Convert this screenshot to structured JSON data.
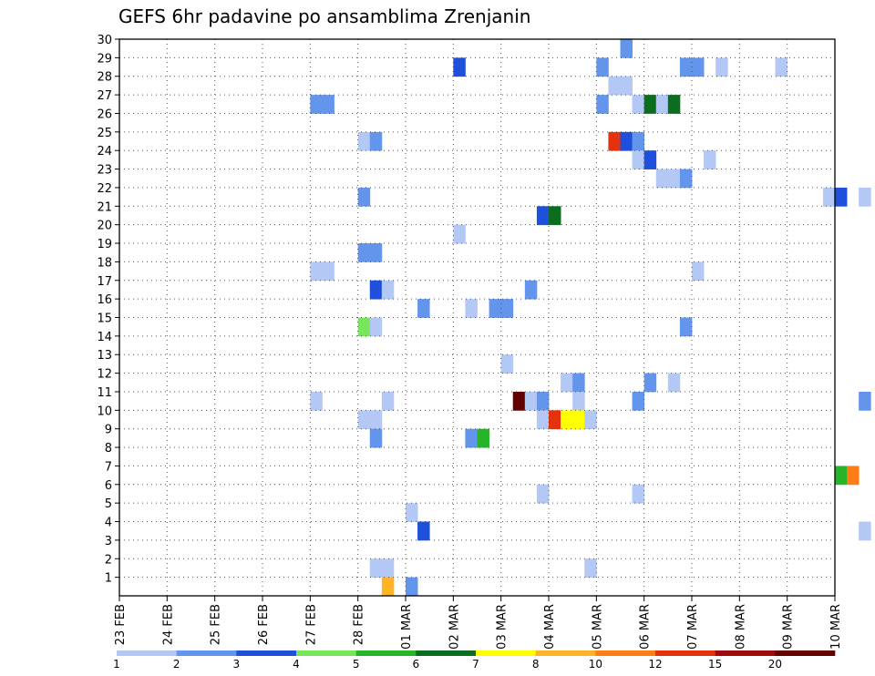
{
  "chart_data": {
    "type": "heatmap",
    "title": "GEFS 6hr padavine po ansamblima Zrenjanin",
    "xlabel": "",
    "ylabel": "",
    "x_tick_labels": [
      "23 FEB",
      "24 FEB",
      "25 FEB",
      "26 FEB",
      "27 FEB",
      "28 FEB",
      "01 MAR",
      "02 MAR",
      "03 MAR",
      "04 MAR",
      "05 MAR",
      "06 MAR",
      "07 MAR",
      "08 MAR",
      "09 MAR",
      "10 MAR"
    ],
    "y_tick_labels": [
      "1",
      "2",
      "3",
      "4",
      "5",
      "6",
      "7",
      "8",
      "9",
      "10",
      "11",
      "12",
      "13",
      "14",
      "15",
      "16",
      "17",
      "18",
      "19",
      "20",
      "21",
      "22",
      "23",
      "24",
      "25",
      "26",
      "27",
      "28",
      "29",
      "30"
    ],
    "x_range_days": [
      0,
      15
    ],
    "y_range": [
      0,
      30
    ],
    "grid": true,
    "legend": {
      "placement": "bottom",
      "labels": [
        "1",
        "2",
        "3",
        "4",
        "5",
        "6",
        "7",
        "8",
        "10",
        "12",
        "15",
        "20"
      ],
      "colors": [
        "#b4c8f5",
        "#6495ed",
        "#1e50dc",
        "#78e65a",
        "#28b428",
        "#0a6e1e",
        "#ffff00",
        "#ffb428",
        "#ff7d14",
        "#e6320a",
        "#a00a0a",
        "#640000"
      ]
    },
    "cells": [
      [
        10.5,
        30,
        1
      ],
      [
        7.0,
        29,
        2
      ],
      [
        10.0,
        29,
        1
      ],
      [
        11.75,
        29,
        1
      ],
      [
        12.0,
        29,
        1
      ],
      [
        12.5,
        29,
        0
      ],
      [
        13.75,
        29,
        0
      ],
      [
        10.25,
        28,
        0
      ],
      [
        10.5,
        28,
        0
      ],
      [
        4.0,
        27,
        1
      ],
      [
        4.25,
        27,
        1
      ],
      [
        10.0,
        27,
        1
      ],
      [
        10.75,
        27,
        0
      ],
      [
        11.0,
        27,
        5
      ],
      [
        11.25,
        27,
        0
      ],
      [
        11.5,
        27,
        5
      ],
      [
        5.0,
        25,
        0
      ],
      [
        5.25,
        25,
        1
      ],
      [
        10.25,
        25,
        9
      ],
      [
        10.5,
        25,
        2
      ],
      [
        10.75,
        25,
        1
      ],
      [
        10.75,
        24,
        0
      ],
      [
        11.0,
        24,
        2
      ],
      [
        12.25,
        24,
        0
      ],
      [
        11.25,
        23,
        0
      ],
      [
        11.5,
        23,
        0
      ],
      [
        11.75,
        23,
        1
      ],
      [
        5.0,
        22,
        1
      ],
      [
        14.75,
        22,
        0
      ],
      [
        15.0,
        22,
        2
      ],
      [
        15.5,
        22,
        0
      ],
      [
        8.75,
        21,
        2
      ],
      [
        9.0,
        21,
        5
      ],
      [
        7.0,
        20,
        0
      ],
      [
        5.0,
        19,
        1
      ],
      [
        5.25,
        19,
        1
      ],
      [
        4.0,
        18,
        0
      ],
      [
        4.25,
        18,
        0
      ],
      [
        12.0,
        18,
        0
      ],
      [
        5.25,
        17,
        2
      ],
      [
        5.5,
        17,
        0
      ],
      [
        8.5,
        17,
        1
      ],
      [
        6.25,
        16,
        1
      ],
      [
        7.25,
        16,
        0
      ],
      [
        7.75,
        16,
        1
      ],
      [
        8.0,
        16,
        1
      ],
      [
        5.0,
        15,
        3
      ],
      [
        5.25,
        15,
        0
      ],
      [
        11.75,
        15,
        1
      ],
      [
        8.0,
        13,
        0
      ],
      [
        9.25,
        12,
        0
      ],
      [
        9.5,
        12,
        1
      ],
      [
        11.0,
        12,
        1
      ],
      [
        11.5,
        12,
        0
      ],
      [
        4.0,
        11,
        0
      ],
      [
        5.5,
        11,
        0
      ],
      [
        8.25,
        11,
        11
      ],
      [
        8.5,
        11,
        0
      ],
      [
        8.75,
        11,
        1
      ],
      [
        9.5,
        11,
        0
      ],
      [
        10.75,
        11,
        1
      ],
      [
        15.5,
        11,
        1
      ],
      [
        5.0,
        10,
        0
      ],
      [
        5.25,
        10,
        0
      ],
      [
        8.75,
        10,
        0
      ],
      [
        9.0,
        10,
        9
      ],
      [
        9.25,
        10,
        6
      ],
      [
        9.5,
        10,
        6
      ],
      [
        9.75,
        10,
        0
      ],
      [
        5.25,
        9,
        1
      ],
      [
        7.25,
        9,
        1
      ],
      [
        7.5,
        9,
        4
      ],
      [
        15.0,
        7,
        4
      ],
      [
        15.25,
        7,
        8
      ],
      [
        8.75,
        6,
        0
      ],
      [
        10.75,
        6,
        0
      ],
      [
        6.0,
        5,
        0
      ],
      [
        6.25,
        4,
        2
      ],
      [
        15.5,
        4,
        0
      ],
      [
        5.25,
        2,
        0
      ],
      [
        5.5,
        2,
        0
      ],
      [
        9.75,
        2,
        0
      ],
      [
        5.5,
        1,
        7
      ],
      [
        6.0,
        1,
        1
      ]
    ]
  }
}
